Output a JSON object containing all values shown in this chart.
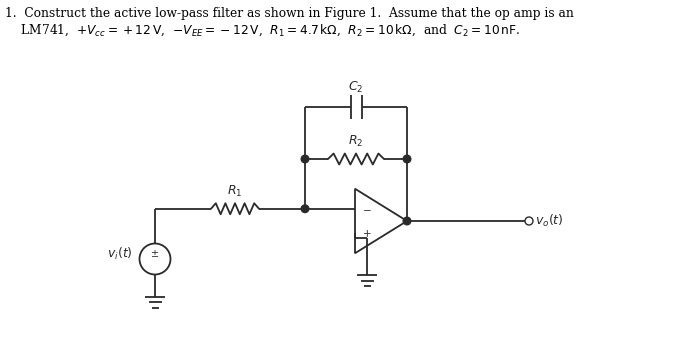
{
  "line_color": "#2a2a2a",
  "figsize": [
    7.0,
    3.39
  ],
  "dpi": 100,
  "xlim": [
    0,
    7
  ],
  "ylim": [
    0,
    3.39
  ]
}
